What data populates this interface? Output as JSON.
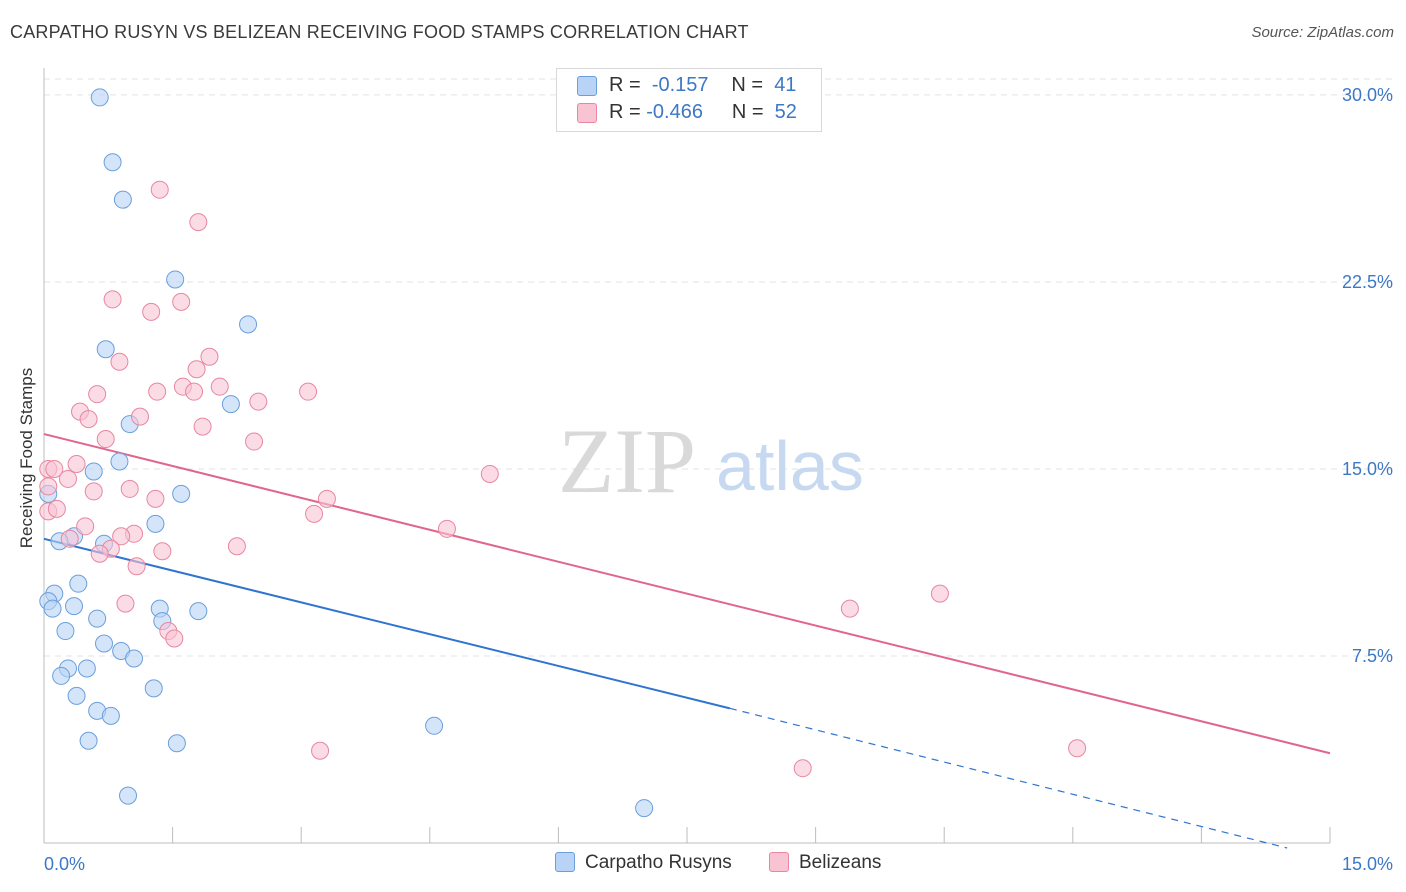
{
  "title": "CARPATHO RUSYN VS BELIZEAN RECEIVING FOOD STAMPS CORRELATION CHART",
  "source": "Source: ZipAtlas.com",
  "watermark": {
    "zip": "ZIP",
    "atlas": "atlas"
  },
  "legend": {
    "rows": [
      {
        "r_label": "R =",
        "r_value": "-0.157",
        "n_label": "N =",
        "n_value": "41"
      },
      {
        "r_label": "R =",
        "r_value": "-0.466",
        "n_label": "N =",
        "n_value": "52"
      }
    ]
  },
  "bottom_legend": {
    "series1": "Carpatho Rusyns",
    "series2": "Belizeans"
  },
  "colors": {
    "blue_fill": "#b8d3f5",
    "blue_stroke": "#6a9fdc",
    "blue_line": "#2f74d0",
    "pink_fill": "#f8c3d3",
    "pink_stroke": "#e8879f",
    "pink_line": "#e0668c",
    "tick_text": "#3c78c6",
    "grid": "#e3e3e3"
  },
  "chart_data": {
    "type": "scatter",
    "title": "CARPATHO RUSYN VS BELIZEAN RECEIVING FOOD STAMPS CORRELATION CHART",
    "xlabel": "",
    "ylabel": "Receiving Food Stamps",
    "xlim": [
      0,
      15
    ],
    "ylim": [
      0,
      31
    ],
    "x_tick_labels": [
      "0.0%",
      "15.0%"
    ],
    "y_ticks": [
      7.5,
      15.0,
      22.5,
      30.0
    ],
    "y_tick_labels": [
      "7.5%",
      "15.0%",
      "22.5%",
      "30.0%"
    ],
    "grid": "horizontal dashed",
    "legend_placement": "top-center",
    "series": [
      {
        "name": "Carpatho Rusyns",
        "color": "blue",
        "R": -0.157,
        "N": 41,
        "points": [
          [
            0.65,
            29.9
          ],
          [
            0.8,
            27.3
          ],
          [
            0.92,
            25.8
          ],
          [
            1.53,
            22.6
          ],
          [
            2.38,
            20.8
          ],
          [
            0.72,
            19.8
          ],
          [
            2.18,
            17.6
          ],
          [
            1.0,
            16.8
          ],
          [
            0.88,
            15.3
          ],
          [
            0.58,
            14.9
          ],
          [
            0.05,
            14.0
          ],
          [
            1.6,
            14.0
          ],
          [
            1.3,
            12.8
          ],
          [
            0.35,
            12.3
          ],
          [
            0.18,
            12.1
          ],
          [
            0.7,
            12.0
          ],
          [
            0.4,
            10.4
          ],
          [
            0.12,
            10.0
          ],
          [
            0.05,
            9.7
          ],
          [
            0.1,
            9.4
          ],
          [
            0.35,
            9.5
          ],
          [
            1.35,
            9.4
          ],
          [
            1.8,
            9.3
          ],
          [
            0.62,
            9.0
          ],
          [
            1.38,
            8.9
          ],
          [
            0.25,
            8.5
          ],
          [
            0.7,
            8.0
          ],
          [
            0.9,
            7.7
          ],
          [
            1.05,
            7.4
          ],
          [
            0.28,
            7.0
          ],
          [
            0.5,
            7.0
          ],
          [
            0.2,
            6.7
          ],
          [
            1.28,
            6.2
          ],
          [
            0.38,
            5.9
          ],
          [
            0.62,
            5.3
          ],
          [
            0.78,
            5.1
          ],
          [
            4.55,
            4.7
          ],
          [
            0.52,
            4.1
          ],
          [
            1.55,
            4.0
          ],
          [
            0.98,
            1.9
          ],
          [
            7.0,
            1.4
          ]
        ]
      },
      {
        "name": "Belizeans",
        "color": "pink",
        "R": -0.466,
        "N": 52,
        "points": [
          [
            1.35,
            26.2
          ],
          [
            1.8,
            24.9
          ],
          [
            0.8,
            21.8
          ],
          [
            1.6,
            21.7
          ],
          [
            1.25,
            21.3
          ],
          [
            1.93,
            19.5
          ],
          [
            0.88,
            19.3
          ],
          [
            1.78,
            19.0
          ],
          [
            1.62,
            18.3
          ],
          [
            2.05,
            18.3
          ],
          [
            1.32,
            18.1
          ],
          [
            1.75,
            18.1
          ],
          [
            3.08,
            18.1
          ],
          [
            0.62,
            18.0
          ],
          [
            2.5,
            17.7
          ],
          [
            0.42,
            17.3
          ],
          [
            1.12,
            17.1
          ],
          [
            0.52,
            17.0
          ],
          [
            1.85,
            16.7
          ],
          [
            0.72,
            16.2
          ],
          [
            2.45,
            16.1
          ],
          [
            0.05,
            15.0
          ],
          [
            0.12,
            15.0
          ],
          [
            0.38,
            15.2
          ],
          [
            5.2,
            14.8
          ],
          [
            0.28,
            14.6
          ],
          [
            0.05,
            14.3
          ],
          [
            0.58,
            14.1
          ],
          [
            1.0,
            14.2
          ],
          [
            1.3,
            13.8
          ],
          [
            3.3,
            13.8
          ],
          [
            0.05,
            13.3
          ],
          [
            0.15,
            13.4
          ],
          [
            3.15,
            13.2
          ],
          [
            0.48,
            12.7
          ],
          [
            4.7,
            12.6
          ],
          [
            1.05,
            12.4
          ],
          [
            0.9,
            12.3
          ],
          [
            0.3,
            12.2
          ],
          [
            2.25,
            11.9
          ],
          [
            0.78,
            11.8
          ],
          [
            1.38,
            11.7
          ],
          [
            0.65,
            11.6
          ],
          [
            1.08,
            11.1
          ],
          [
            0.95,
            9.6
          ],
          [
            10.45,
            10.0
          ],
          [
            9.4,
            9.4
          ],
          [
            1.45,
            8.5
          ],
          [
            1.52,
            8.2
          ],
          [
            3.22,
            3.7
          ],
          [
            12.05,
            3.8
          ],
          [
            8.85,
            3.0
          ]
        ]
      }
    ],
    "trend_lines": [
      {
        "series": "Carpatho Rusyns",
        "from": [
          0,
          12.2
        ],
        "to": [
          8.0,
          5.4
        ],
        "dashed_to": [
          14.5,
          -0.2
        ]
      },
      {
        "series": "Belizeans",
        "from": [
          0,
          16.4
        ],
        "to": [
          15.0,
          3.6
        ]
      }
    ]
  }
}
